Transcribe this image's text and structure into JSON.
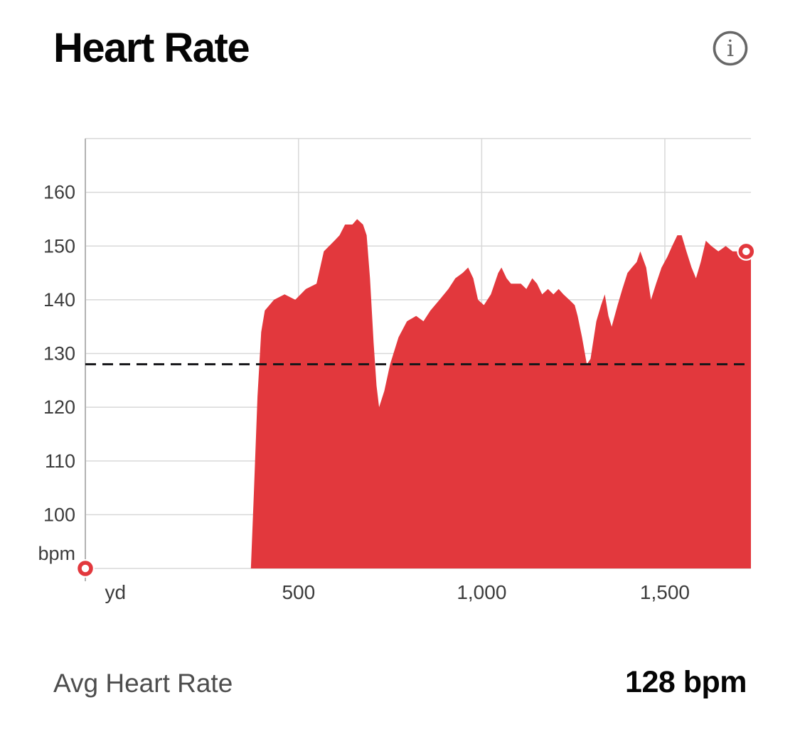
{
  "header": {
    "title": "Heart Rate"
  },
  "footer": {
    "label": "Avg Heart Rate",
    "value": "128 bpm"
  },
  "chart_data": {
    "type": "area",
    "title": "Heart Rate",
    "x_unit": "yd",
    "y_unit": "bpm",
    "xlim": [
      -82,
      1735
    ],
    "ylim": [
      90,
      170
    ],
    "x_ticks": [
      {
        "value": 0,
        "label": "yd",
        "gridline": false
      },
      {
        "value": 500,
        "label": "500",
        "gridline": true
      },
      {
        "value": 1000,
        "label": "1,000",
        "gridline": true
      },
      {
        "value": 1500,
        "label": "1,500",
        "gridline": true
      }
    ],
    "y_ticks": [
      100,
      110,
      120,
      130,
      140,
      150,
      160
    ],
    "average_bpm": 128,
    "average_line": {
      "value": 128,
      "style": "dashed",
      "color": "#17171a"
    },
    "grid_color": "#d8d8d8",
    "axis_color": "#b3b3b3",
    "label_color": "#3c3c3c",
    "legend": "none",
    "series": [
      {
        "name": "Heart Rate",
        "color": "#e2383d",
        "points": [
          [
            370,
            90
          ],
          [
            378,
            104
          ],
          [
            388,
            122
          ],
          [
            398,
            134
          ],
          [
            408,
            138
          ],
          [
            433,
            140
          ],
          [
            462,
            141
          ],
          [
            491,
            140
          ],
          [
            520,
            142
          ],
          [
            549,
            143
          ],
          [
            569,
            149
          ],
          [
            598,
            151
          ],
          [
            612,
            152
          ],
          [
            627,
            154
          ],
          [
            647,
            154
          ],
          [
            660,
            155
          ],
          [
            676,
            154
          ],
          [
            686,
            152
          ],
          [
            695,
            144
          ],
          [
            705,
            132
          ],
          [
            713,
            124
          ],
          [
            720,
            120
          ],
          [
            734,
            123
          ],
          [
            750,
            128
          ],
          [
            773,
            133
          ],
          [
            796,
            136
          ],
          [
            821,
            137
          ],
          [
            841,
            136
          ],
          [
            860,
            138
          ],
          [
            885,
            140
          ],
          [
            909,
            142
          ],
          [
            928,
            144
          ],
          [
            948,
            145
          ],
          [
            963,
            146
          ],
          [
            977,
            144
          ],
          [
            990,
            140
          ],
          [
            1006,
            139
          ],
          [
            1025,
            141
          ],
          [
            1045,
            145
          ],
          [
            1054,
            146
          ],
          [
            1068,
            144
          ],
          [
            1080,
            143
          ],
          [
            1093,
            143
          ],
          [
            1107,
            143
          ],
          [
            1122,
            142
          ],
          [
            1138,
            144
          ],
          [
            1151,
            143
          ],
          [
            1165,
            141
          ],
          [
            1181,
            142
          ],
          [
            1196,
            141
          ],
          [
            1210,
            142
          ],
          [
            1223,
            141
          ],
          [
            1239,
            140
          ],
          [
            1254,
            139
          ],
          [
            1262,
            137
          ],
          [
            1274,
            133
          ],
          [
            1287,
            128
          ],
          [
            1297,
            129
          ],
          [
            1313,
            136
          ],
          [
            1326,
            139
          ],
          [
            1336,
            141
          ],
          [
            1346,
            137
          ],
          [
            1355,
            135
          ],
          [
            1371,
            139
          ],
          [
            1384,
            142
          ],
          [
            1398,
            145
          ],
          [
            1410,
            146
          ],
          [
            1423,
            147
          ],
          [
            1433,
            149
          ],
          [
            1449,
            146
          ],
          [
            1462,
            140
          ],
          [
            1476,
            143
          ],
          [
            1491,
            146
          ],
          [
            1507,
            148
          ],
          [
            1520,
            150
          ],
          [
            1534,
            152
          ],
          [
            1546,
            152
          ],
          [
            1559,
            149
          ],
          [
            1573,
            146
          ],
          [
            1585,
            144
          ],
          [
            1598,
            147
          ],
          [
            1612,
            151
          ],
          [
            1627,
            150
          ],
          [
            1646,
            149
          ],
          [
            1666,
            150
          ],
          [
            1685,
            149
          ],
          [
            1705,
            149
          ],
          [
            1722,
            149
          ],
          [
            1735,
            149
          ]
        ]
      }
    ],
    "markers": {
      "style": "ring",
      "color": "#e2383d",
      "start": [
        -82,
        90
      ],
      "end": [
        1722,
        149
      ]
    }
  }
}
